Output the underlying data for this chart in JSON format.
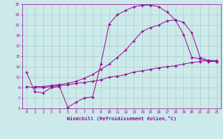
{
  "background_color": "#cceaea",
  "grid_color": "#aacccc",
  "line_color": "#990099",
  "marker": "+",
  "xlabel": "Windchill (Refroidissement éolien,°C)",
  "xlim": [
    -0.5,
    23.5
  ],
  "ylim": [
    5,
    25
  ],
  "xticks": [
    0,
    1,
    2,
    3,
    4,
    5,
    6,
    7,
    8,
    9,
    10,
    11,
    12,
    13,
    14,
    15,
    16,
    17,
    18,
    19,
    20,
    21,
    22,
    23
  ],
  "yticks": [
    5,
    7,
    9,
    11,
    13,
    15,
    17,
    19,
    21,
    23,
    25
  ],
  "curve1_x": [
    0,
    1,
    2,
    3,
    4,
    5,
    6,
    7,
    8,
    9,
    10,
    11,
    12,
    13,
    14,
    15,
    16,
    17,
    18,
    19,
    20,
    21,
    22,
    23
  ],
  "curve1_y": [
    12.0,
    8.2,
    8.0,
    9.0,
    9.2,
    5.2,
    6.2,
    7.0,
    7.2,
    13.5,
    21.2,
    23.0,
    23.8,
    24.5,
    24.8,
    24.8,
    24.5,
    23.5,
    22.0,
    19.2,
    14.8,
    14.5,
    14.0,
    14.0
  ],
  "curve2_x": [
    0,
    1,
    2,
    3,
    4,
    5,
    6,
    7,
    8,
    9,
    10,
    11,
    12,
    13,
    14,
    15,
    16,
    17,
    18,
    19,
    20,
    21,
    22,
    23
  ],
  "curve2_y": [
    9.2,
    9.0,
    9.0,
    9.2,
    9.4,
    9.5,
    9.8,
    10.0,
    10.2,
    10.5,
    11.0,
    11.2,
    11.5,
    12.0,
    12.2,
    12.5,
    12.8,
    13.0,
    13.2,
    13.5,
    13.8,
    14.0,
    14.2,
    14.2
  ],
  "curve3_x": [
    1,
    2,
    3,
    4,
    5,
    6,
    7,
    8,
    9,
    10,
    11,
    12,
    13,
    14,
    15,
    16,
    17,
    18,
    19,
    20,
    21,
    22,
    23
  ],
  "curve3_y": [
    9.2,
    9.2,
    9.4,
    9.6,
    9.8,
    10.2,
    10.8,
    11.5,
    12.5,
    13.5,
    14.8,
    16.2,
    18.0,
    19.8,
    20.5,
    21.0,
    21.8,
    22.0,
    21.5,
    19.5,
    14.8,
    14.2,
    14.0
  ]
}
